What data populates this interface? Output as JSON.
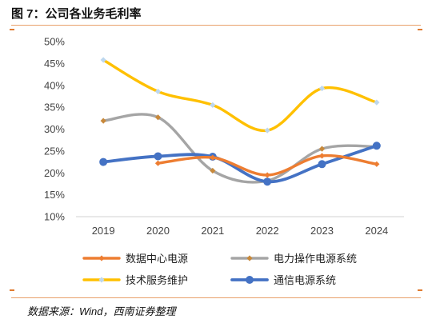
{
  "figure_title": "图 7：公司各业务毛利率",
  "source_note": "数据来源：Wind，西南证券整理",
  "chart_data": {
    "type": "line",
    "title": "",
    "xlabel": "",
    "ylabel": "",
    "categories": [
      "2019",
      "2020",
      "2021",
      "2022",
      "2023",
      "2024"
    ],
    "ylim": [
      10,
      50
    ],
    "yticks": [
      "10%",
      "15%",
      "20%",
      "25%",
      "30%",
      "35%",
      "40%",
      "45%",
      "50%"
    ],
    "grid": false,
    "legend_position": "bottom",
    "smooth": true,
    "series": [
      {
        "name": "数据中心电源",
        "values": [
          null,
          22.2,
          23.5,
          19.5,
          23.9,
          22.0
        ],
        "color": "#ED7D31",
        "marker": "diamond"
      },
      {
        "name": "电力操作电源系统",
        "values": [
          31.9,
          32.7,
          20.5,
          18.2,
          25.5,
          26.0
        ],
        "color": "#A5A5A5",
        "marker": "diamond",
        "marker_color": "#C8893B"
      },
      {
        "name": "技术服务维护",
        "values": [
          45.8,
          38.6,
          35.5,
          29.7,
          39.3,
          36.1
        ],
        "color": "#FFC000",
        "marker": "diamond",
        "marker_color": "#BDD7EE"
      },
      {
        "name": "通信电源系统",
        "values": [
          22.5,
          23.8,
          23.7,
          18.0,
          22.0,
          26.2
        ],
        "color": "#4472C4",
        "marker": "circle"
      }
    ]
  }
}
